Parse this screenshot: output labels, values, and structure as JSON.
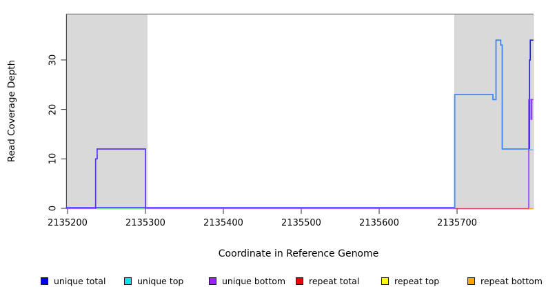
{
  "figure": {
    "background": "#ffffff"
  },
  "y_axis": {
    "label": "Read Coverage Depth",
    "ticks": [
      0,
      10,
      20,
      30
    ]
  },
  "x_axis": {
    "label": "Coordinate in Reference Genome",
    "ticks": [
      2135200,
      2135300,
      2135400,
      2135500,
      2135600,
      2135700
    ]
  },
  "legend": {
    "items": [
      {
        "label": "unique total",
        "color": "#0000f0"
      },
      {
        "label": "unique top",
        "color": "#00e6e6"
      },
      {
        "label": "unique bottom",
        "color": "#a020f0"
      },
      {
        "label": "repeat total",
        "color": "#ee0000"
      },
      {
        "label": "repeat top",
        "color": "#ffff00"
      },
      {
        "label": "repeat bottom",
        "color": "#ffa500"
      }
    ]
  },
  "chart_data": {
    "type": "line",
    "title": "",
    "xlabel": "Coordinate in Reference Genome",
    "ylabel": "Read Coverage Depth",
    "xlim": [
      2135198,
      2135798
    ],
    "ylim": [
      0,
      39
    ],
    "grid": false,
    "legend_position": "bottom",
    "highlight_regions": [
      {
        "x0": 2135198,
        "x1": 2135302,
        "color": "#d9d9d9"
      },
      {
        "x0": 2135697,
        "x1": 2135798,
        "color": "#d9d9d9"
      }
    ],
    "top_border_color": "#8a8a8a",
    "series": [
      {
        "name": "unique total",
        "color": "#0000f0",
        "points": [
          [
            2135198,
            0
          ],
          [
            2135236,
            0
          ],
          [
            2135236,
            10
          ],
          [
            2135238,
            10
          ],
          [
            2135238,
            12
          ],
          [
            2135300,
            12
          ],
          [
            2135300,
            0
          ],
          [
            2135697,
            0
          ],
          [
            2135697,
            23
          ],
          [
            2135746,
            23
          ],
          [
            2135746,
            22
          ],
          [
            2135750,
            22
          ],
          [
            2135750,
            34
          ],
          [
            2135756,
            34
          ],
          [
            2135756,
            33
          ],
          [
            2135758,
            33
          ],
          [
            2135758,
            12
          ],
          [
            2135793,
            12
          ],
          [
            2135793,
            30
          ],
          [
            2135794,
            30
          ],
          [
            2135794,
            34
          ],
          [
            2135798,
            34
          ]
        ]
      },
      {
        "name": "unique top",
        "color": "#00e6e6",
        "points": [
          [
            2135198,
            0
          ],
          [
            2135697,
            0
          ],
          [
            2135697,
            23
          ],
          [
            2135746,
            23
          ],
          [
            2135746,
            22
          ],
          [
            2135750,
            22
          ],
          [
            2135750,
            34
          ],
          [
            2135756,
            34
          ],
          [
            2135756,
            33
          ],
          [
            2135758,
            33
          ],
          [
            2135758,
            12
          ],
          [
            2135798,
            12
          ]
        ]
      },
      {
        "name": "unique bottom",
        "color": "#a020f0",
        "points": [
          [
            2135198,
            0
          ],
          [
            2135236,
            0
          ],
          [
            2135236,
            10
          ],
          [
            2135238,
            10
          ],
          [
            2135238,
            12
          ],
          [
            2135300,
            12
          ],
          [
            2135300,
            0
          ],
          [
            2135792,
            0
          ],
          [
            2135792,
            22
          ],
          [
            2135795,
            22
          ],
          [
            2135795,
            18
          ],
          [
            2135796,
            18
          ],
          [
            2135796,
            22
          ],
          [
            2135798,
            22
          ]
        ]
      },
      {
        "name": "repeat total",
        "color": "#ee0000",
        "points": [
          [
            2135198,
            0
          ],
          [
            2135798,
            0
          ]
        ]
      },
      {
        "name": "repeat top",
        "color": "#ffff00",
        "points": [
          [
            2135198,
            0
          ],
          [
            2135798,
            0
          ]
        ]
      },
      {
        "name": "repeat bottom",
        "color": "#ffa500",
        "points": [
          [
            2135198,
            0
          ],
          [
            2135798,
            0
          ]
        ]
      }
    ],
    "render_series": [
      {
        "name": "baseline-unique-bottom",
        "color": "#9a5cf0",
        "width": 1.3,
        "yoff": 0.5,
        "points": [
          [
            2135198,
            0
          ],
          [
            2135697,
            0
          ]
        ]
      },
      {
        "name": "baseline-unique-total",
        "color": "#4338ff",
        "width": 1.4,
        "yoff": -1.2,
        "points": [
          [
            2135198,
            0
          ],
          [
            2135697,
            0
          ]
        ]
      },
      {
        "name": "baseline-repeat-blend-green",
        "color": "#84de84",
        "width": 1.4,
        "yoff": 0.7,
        "points": [
          [
            2135237,
            0
          ],
          [
            2135299,
            0
          ]
        ]
      },
      {
        "name": "baseline-repeat-total-red",
        "color": "#e23b5e",
        "width": 1.4,
        "yoff": 0.5,
        "points": [
          [
            2135697,
            0
          ],
          [
            2135792,
            0
          ]
        ]
      },
      {
        "name": "baseline-repeat-bottom-orange",
        "color": "#ffa321",
        "width": 1.8,
        "yoff": 0.5,
        "points": [
          [
            2135792,
            0
          ],
          [
            2135798,
            0
          ]
        ]
      },
      {
        "name": "unique-coverage-box-left",
        "color": "#5a2fe6",
        "width": 1.7,
        "yoff": 0,
        "points": [
          [
            2135236,
            0
          ],
          [
            2135236,
            10
          ],
          [
            2135238,
            10
          ],
          [
            2135238,
            12
          ],
          [
            2135300,
            12
          ],
          [
            2135300,
            0
          ]
        ]
      },
      {
        "name": "unique-coverage-right",
        "color": "#3e86f2",
        "width": 1.8,
        "yoff": 0,
        "points": [
          [
            2135697,
            0
          ],
          [
            2135697,
            23
          ],
          [
            2135746,
            23
          ],
          [
            2135746,
            22
          ],
          [
            2135750,
            22
          ],
          [
            2135750,
            34
          ],
          [
            2135756,
            34
          ],
          [
            2135756,
            33
          ],
          [
            2135758,
            33
          ],
          [
            2135758,
            12
          ],
          [
            2135792,
            12
          ]
        ]
      },
      {
        "name": "unique-top-right-edge",
        "color": "#3fd8de",
        "width": 1.5,
        "yoff": 1.2,
        "points": [
          [
            2135792,
            12
          ],
          [
            2135798,
            12
          ]
        ]
      },
      {
        "name": "unique-total-right-edge",
        "color": "#2524dc",
        "width": 1.7,
        "yoff": 0,
        "points": [
          [
            2135793,
            12
          ],
          [
            2135793,
            30
          ],
          [
            2135794,
            30
          ],
          [
            2135794,
            34
          ],
          [
            2135798,
            34
          ]
        ]
      },
      {
        "name": "unique-bottom-right-edge",
        "color": "#9440e8",
        "width": 1.6,
        "yoff": 0,
        "points": [
          [
            2135792,
            0
          ],
          [
            2135792,
            22
          ],
          [
            2135795,
            22
          ],
          [
            2135795,
            18
          ],
          [
            2135796,
            18
          ],
          [
            2135796,
            22
          ],
          [
            2135798,
            22
          ]
        ]
      }
    ]
  }
}
